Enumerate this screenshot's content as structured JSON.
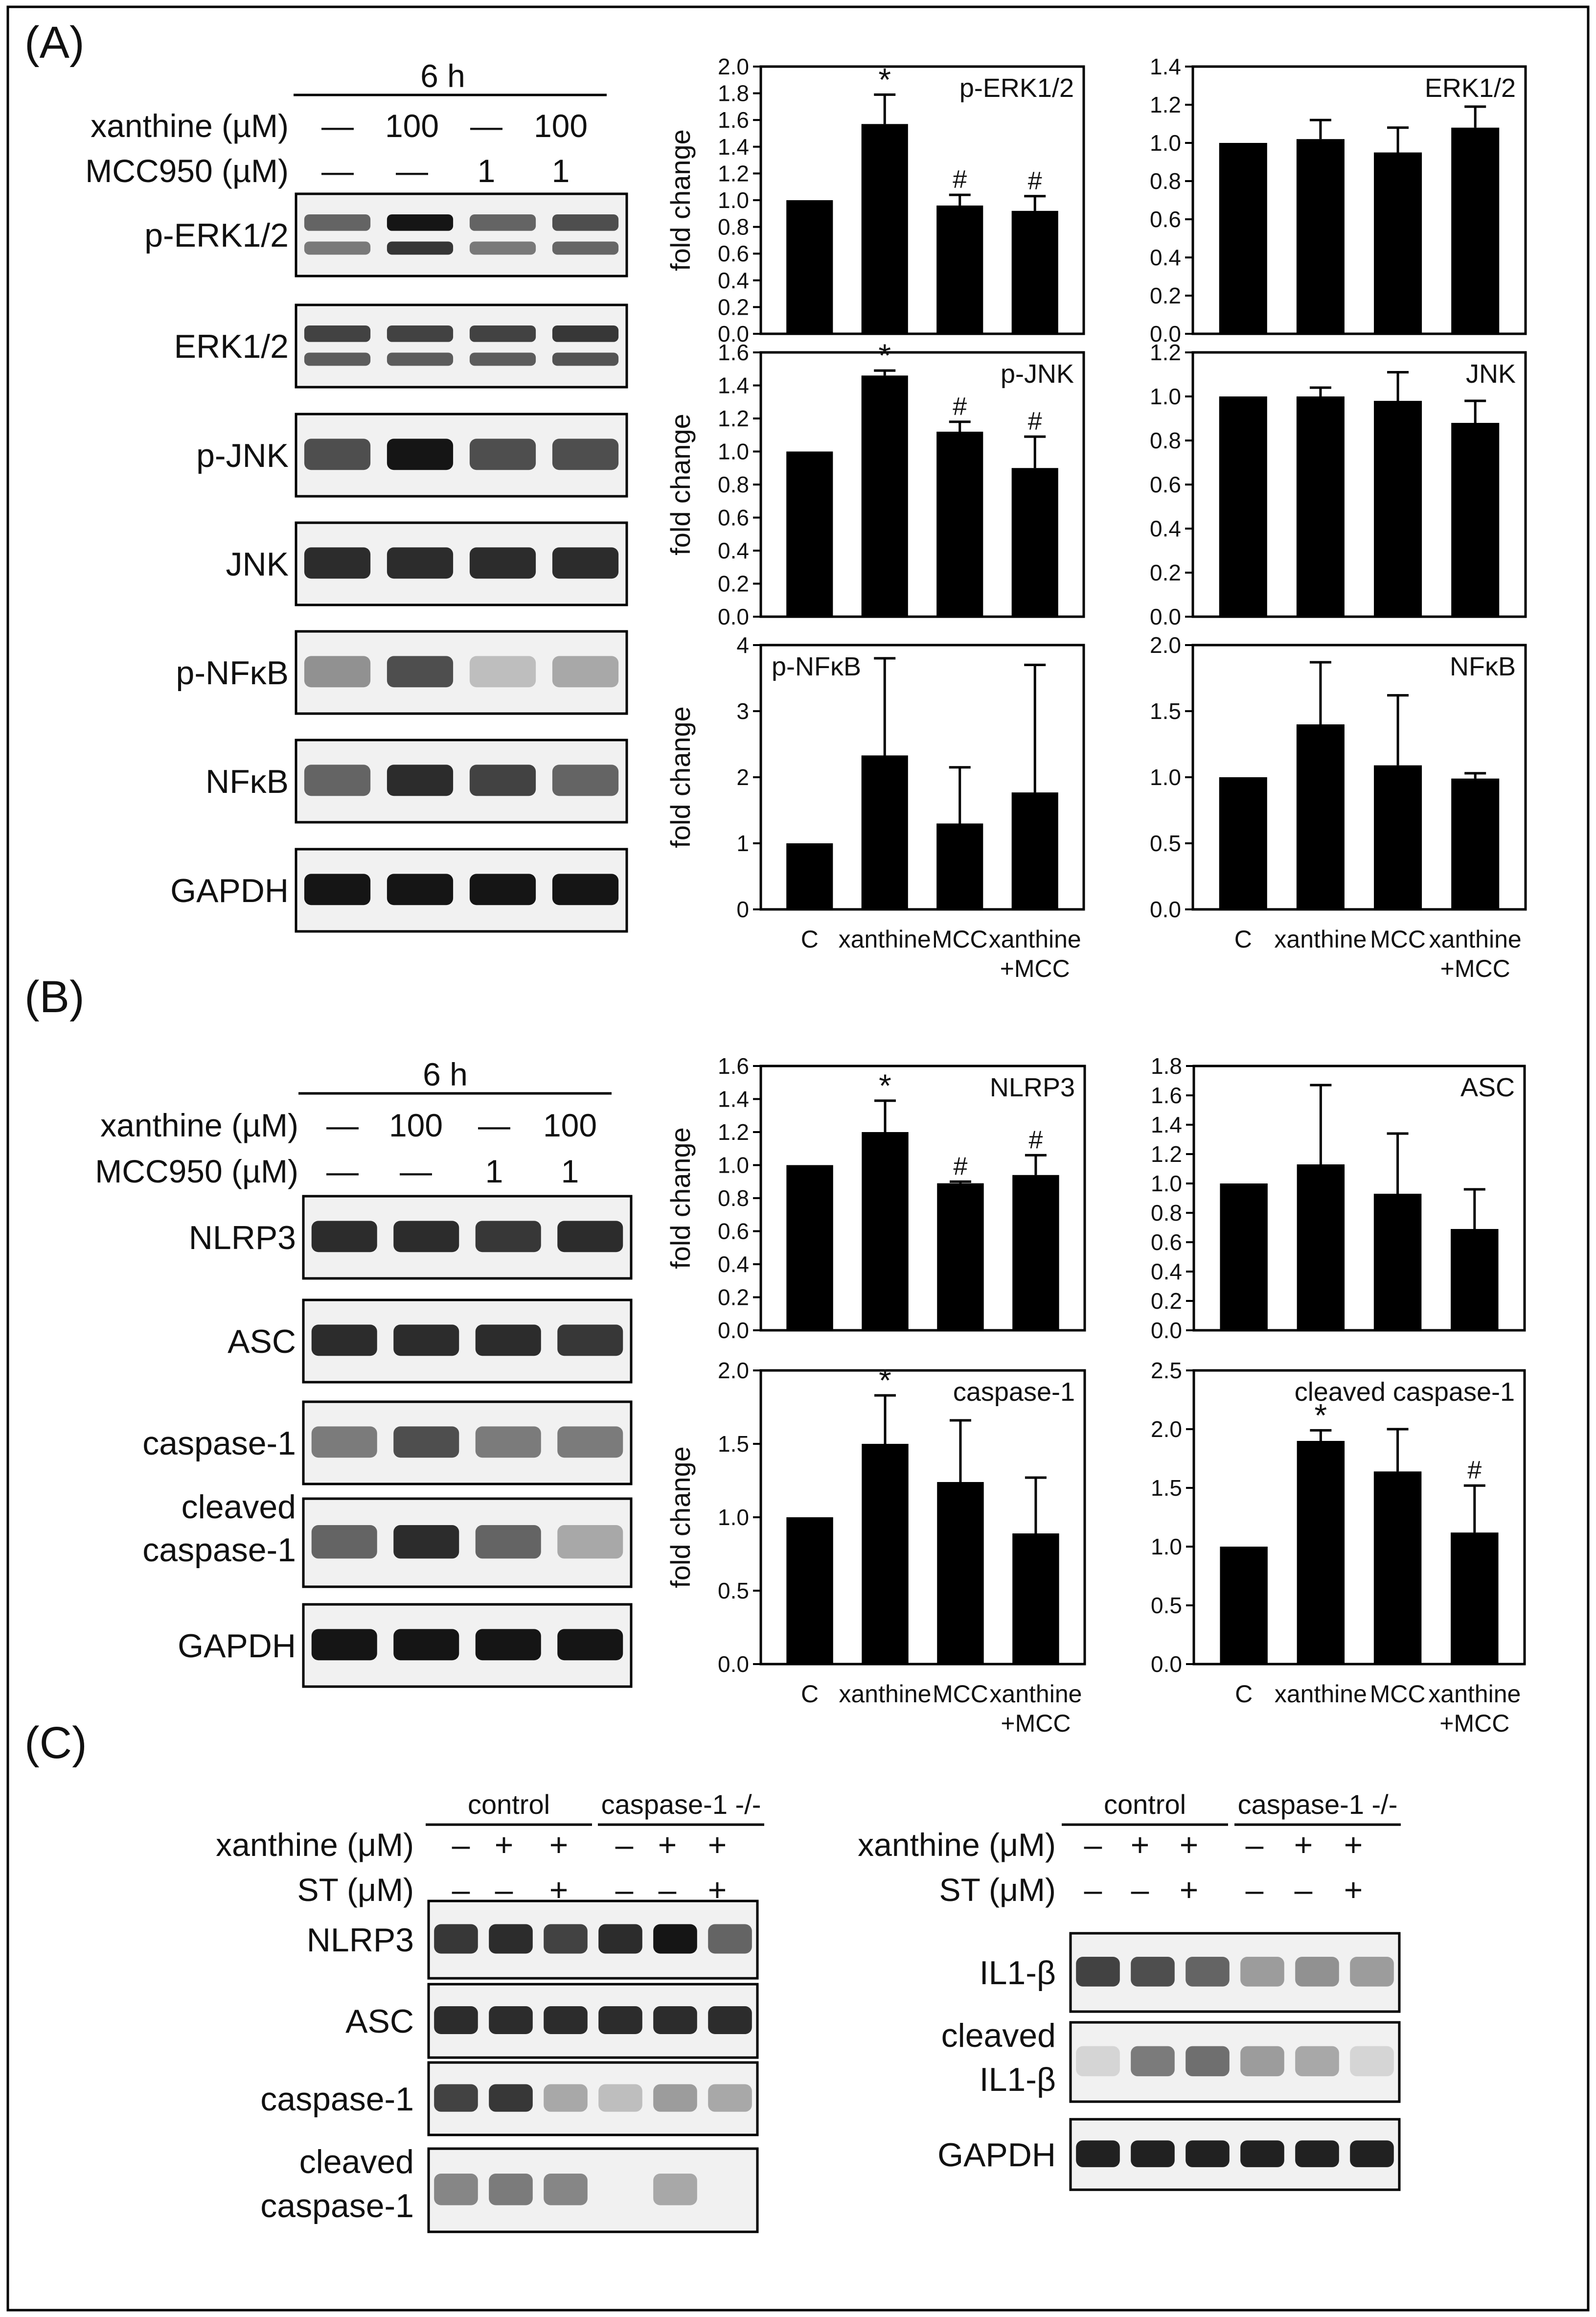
{
  "panels": {
    "A": "(A)",
    "B": "(B)",
    "C": "(C)"
  },
  "colors": {
    "bar": "#000000",
    "frame": "#000000",
    "background": "#ffffff"
  },
  "panelA_blot": {
    "time": "6 h",
    "rows": [
      {
        "label": "xanthine (µM)",
        "values": [
          "—",
          "100",
          "—",
          "100"
        ]
      },
      {
        "label": "MCC950 (µM)",
        "values": [
          "—",
          "—",
          "1",
          "1"
        ]
      }
    ],
    "bands": [
      "p-ERK1/2",
      "ERK1/2",
      "p-JNK",
      "JNK",
      "p-NFκB",
      "NFκB",
      "GAPDH"
    ]
  },
  "panelB_blot": {
    "time": "6 h",
    "rows": [
      {
        "label": "xanthine (µM)",
        "values": [
          "—",
          "100",
          "—",
          "100"
        ]
      },
      {
        "label": "MCC950 (µM)",
        "values": [
          "—",
          "—",
          "1",
          "1"
        ]
      }
    ],
    "bands": [
      "NLRP3",
      "ASC",
      "caspase-1",
      "cleaved caspase-1",
      "GAPDH"
    ]
  },
  "panelC_left": {
    "groups": [
      "control",
      "caspase-1 -/-"
    ],
    "rows": [
      {
        "label": "xanthine (μM)",
        "values": [
          "–",
          "+",
          "+",
          "–",
          "+",
          "+"
        ]
      },
      {
        "label": "ST (μM)",
        "values": [
          "–",
          "–",
          "+",
          "–",
          "–",
          "+"
        ]
      }
    ],
    "bands": [
      "NLRP3",
      "ASC",
      "caspase-1",
      "cleaved caspase-1"
    ]
  },
  "panelC_right": {
    "groups": [
      "control",
      "caspase-1 -/-"
    ],
    "rows": [
      {
        "label": "xanthine (μM)",
        "values": [
          "–",
          "+",
          "+",
          "–",
          "+",
          "+"
        ]
      },
      {
        "label": "ST (μM)",
        "values": [
          "–",
          "–",
          "+",
          "–",
          "–",
          "+"
        ]
      }
    ],
    "bands": [
      "IL1-β",
      "cleaved IL1-β",
      "GAPDH"
    ]
  },
  "chart_data": [
    {
      "type": "bar",
      "panel": "A",
      "title": "p-ERK1/2",
      "ylabel": "fold change",
      "categories": [
        "C",
        "xanthine",
        "MCC",
        "xanthine +MCC"
      ],
      "values": [
        1.0,
        1.57,
        0.96,
        0.92
      ],
      "errors": [
        0,
        0.22,
        0.08,
        0.11
      ],
      "marks": [
        "",
        "*",
        "#",
        "#"
      ],
      "ylim": [
        0,
        2.0
      ],
      "yticks": [
        "0.0",
        "0.2",
        "0.4",
        "0.6",
        "0.8",
        "1.0",
        "1.2",
        "1.4",
        "1.6",
        "1.8",
        "2.0"
      ]
    },
    {
      "type": "bar",
      "panel": "A",
      "title": "ERK1/2",
      "ylabel": "",
      "categories": [
        "C",
        "xanthine",
        "MCC",
        "xanthine +MCC"
      ],
      "values": [
        1.0,
        1.02,
        0.95,
        1.08
      ],
      "errors": [
        0,
        0.1,
        0.13,
        0.11
      ],
      "marks": [
        "",
        "",
        "",
        ""
      ],
      "ylim": [
        0,
        1.4
      ],
      "yticks": [
        "0.0",
        "0.2",
        "0.4",
        "0.6",
        "0.8",
        "1.0",
        "1.2",
        "1.4"
      ]
    },
    {
      "type": "bar",
      "panel": "A",
      "title": "p-JNK",
      "ylabel": "fold change",
      "categories": [
        "C",
        "xanthine",
        "MCC",
        "xanthine +MCC"
      ],
      "values": [
        1.0,
        1.46,
        1.12,
        0.9
      ],
      "errors": [
        0,
        0.03,
        0.06,
        0.19
      ],
      "marks": [
        "",
        "*",
        "#",
        "#"
      ],
      "ylim": [
        0,
        1.6
      ],
      "yticks": [
        "0.0",
        "0.2",
        "0.4",
        "0.6",
        "0.8",
        "1.0",
        "1.2",
        "1.4",
        "1.6"
      ]
    },
    {
      "type": "bar",
      "panel": "A",
      "title": "JNK",
      "ylabel": "",
      "categories": [
        "C",
        "xanthine",
        "MCC",
        "xanthine +MCC"
      ],
      "values": [
        1.0,
        1.0,
        0.98,
        0.88
      ],
      "errors": [
        0,
        0.04,
        0.13,
        0.1
      ],
      "marks": [
        "",
        "",
        "",
        ""
      ],
      "ylim": [
        0,
        1.2
      ],
      "yticks": [
        "0.0",
        "0.2",
        "0.4",
        "0.6",
        "0.8",
        "1.0",
        "1.2"
      ]
    },
    {
      "type": "bar",
      "panel": "A",
      "title": "p-NFκB",
      "ylabel": "fold change",
      "categories": [
        "C",
        "xanthine",
        "MCC",
        "xanthine +MCC"
      ],
      "values": [
        1.0,
        2.33,
        1.3,
        1.77
      ],
      "errors": [
        0,
        1.47,
        0.85,
        1.93
      ],
      "marks": [
        "",
        "",
        "",
        ""
      ],
      "ylim": [
        0,
        4
      ],
      "yticks": [
        "0",
        "1",
        "2",
        "3",
        "4"
      ],
      "show_xlabels": true
    },
    {
      "type": "bar",
      "panel": "A",
      "title": "NFκB",
      "ylabel": "",
      "categories": [
        "C",
        "xanthine",
        "MCC",
        "xanthine +MCC"
      ],
      "values": [
        1.0,
        1.4,
        1.09,
        0.99
      ],
      "errors": [
        0,
        0.47,
        0.53,
        0.04
      ],
      "marks": [
        "",
        "",
        "",
        ""
      ],
      "ylim": [
        0,
        2.0
      ],
      "yticks": [
        "0.0",
        "0.5",
        "1.0",
        "1.5",
        "2.0"
      ],
      "show_xlabels": true
    },
    {
      "type": "bar",
      "panel": "B",
      "title": "NLRP3",
      "ylabel": "fold change",
      "categories": [
        "C",
        "xanthine",
        "MCC",
        "xanthine +MCC"
      ],
      "values": [
        1.0,
        1.2,
        0.89,
        0.94
      ],
      "errors": [
        0,
        0.19,
        0.01,
        0.12
      ],
      "marks": [
        "",
        "*",
        "#",
        "#"
      ],
      "ylim": [
        0,
        1.6
      ],
      "yticks": [
        "0.0",
        "0.2",
        "0.4",
        "0.6",
        "0.8",
        "1.0",
        "1.2",
        "1.4",
        "1.6"
      ]
    },
    {
      "type": "bar",
      "panel": "B",
      "title": "ASC",
      "ylabel": "",
      "categories": [
        "C",
        "xanthine",
        "MCC",
        "xanthine +MCC"
      ],
      "values": [
        1.0,
        1.13,
        0.93,
        0.69
      ],
      "errors": [
        0,
        0.54,
        0.41,
        0.27
      ],
      "marks": [
        "",
        "",
        "",
        ""
      ],
      "ylim": [
        0,
        1.8
      ],
      "yticks": [
        "0.0",
        "0.2",
        "0.4",
        "0.6",
        "0.8",
        "1.0",
        "1.2",
        "1.4",
        "1.6",
        "1.8"
      ]
    },
    {
      "type": "bar",
      "panel": "B",
      "title": "caspase-1",
      "ylabel": "fold change",
      "categories": [
        "C",
        "xanthine",
        "MCC",
        "xanthine +MCC"
      ],
      "values": [
        1.0,
        1.5,
        1.24,
        0.89
      ],
      "errors": [
        0,
        0.33,
        0.42,
        0.38
      ],
      "marks": [
        "",
        "*",
        "",
        ""
      ],
      "ylim": [
        0,
        2.0
      ],
      "yticks": [
        "0.0",
        "0.5",
        "1.0",
        "1.5",
        "2.0"
      ],
      "show_xlabels": true
    },
    {
      "type": "bar",
      "panel": "B",
      "title": "cleaved caspase-1",
      "ylabel": "",
      "categories": [
        "C",
        "xanthine",
        "MCC",
        "xanthine +MCC"
      ],
      "values": [
        1.0,
        1.9,
        1.64,
        1.12
      ],
      "errors": [
        0,
        0.09,
        0.36,
        0.4
      ],
      "marks": [
        "",
        "*",
        "",
        "#"
      ],
      "ylim": [
        0,
        2.5
      ],
      "yticks": [
        "0.0",
        "0.5",
        "1.0",
        "1.5",
        "2.0",
        "2.5"
      ],
      "show_xlabels": true
    }
  ]
}
